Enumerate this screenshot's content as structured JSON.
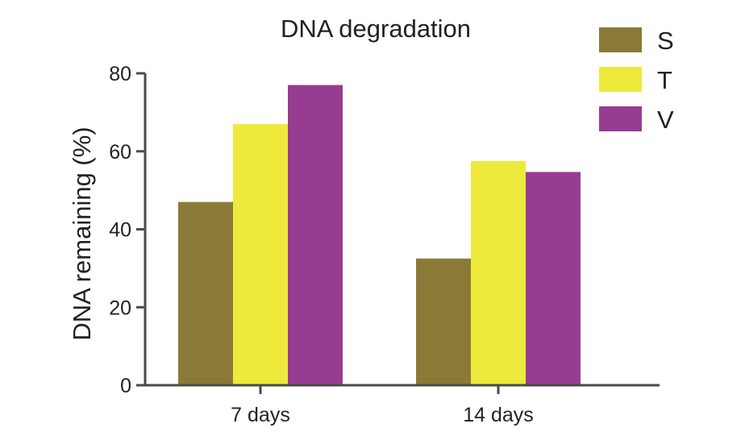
{
  "chart_data": {
    "type": "bar",
    "title": "DNA degradation",
    "xlabel": "",
    "ylabel": "DNA remaining (%)",
    "ylim": [
      0,
      80
    ],
    "yticks": [
      0,
      20,
      40,
      60,
      80
    ],
    "categories": [
      "7 days",
      "14 days"
    ],
    "series": [
      {
        "name": "S",
        "color": "#8b7a37",
        "values": [
          47,
          32.5
        ]
      },
      {
        "name": "T",
        "color": "#eeea3c",
        "values": [
          67,
          57.5
        ]
      },
      {
        "name": "V",
        "color": "#973c91",
        "values": [
          77,
          54.7
        ]
      }
    ],
    "legend_position": "top-right",
    "grid": false
  }
}
